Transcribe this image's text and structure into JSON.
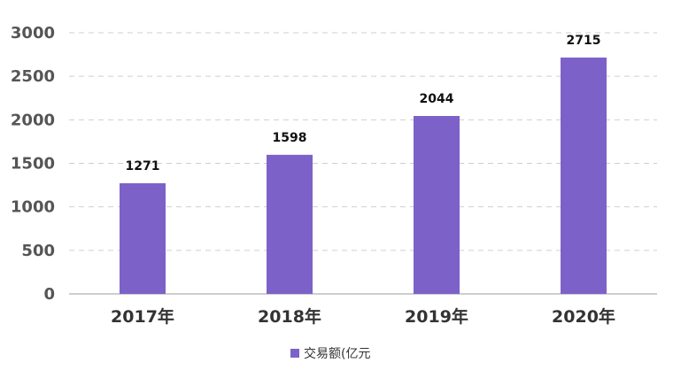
{
  "chart_data": {
    "type": "bar",
    "categories": [
      "2017年",
      "2018年",
      "2019年",
      "2020年"
    ],
    "series": [
      {
        "name": "交易额(亿元",
        "values": [
          1271,
          1598,
          2044,
          2715
        ],
        "color": "#7c62c8"
      }
    ],
    "data_labels": [
      "1271",
      "1598",
      "2044",
      "2715"
    ],
    "ylim": [
      0,
      3000
    ],
    "yticks": [
      0,
      500,
      1000,
      1500,
      2000,
      2500,
      3000
    ],
    "grid": true,
    "legend_position": "bottom-center",
    "title": "",
    "xlabel": "",
    "ylabel": ""
  }
}
